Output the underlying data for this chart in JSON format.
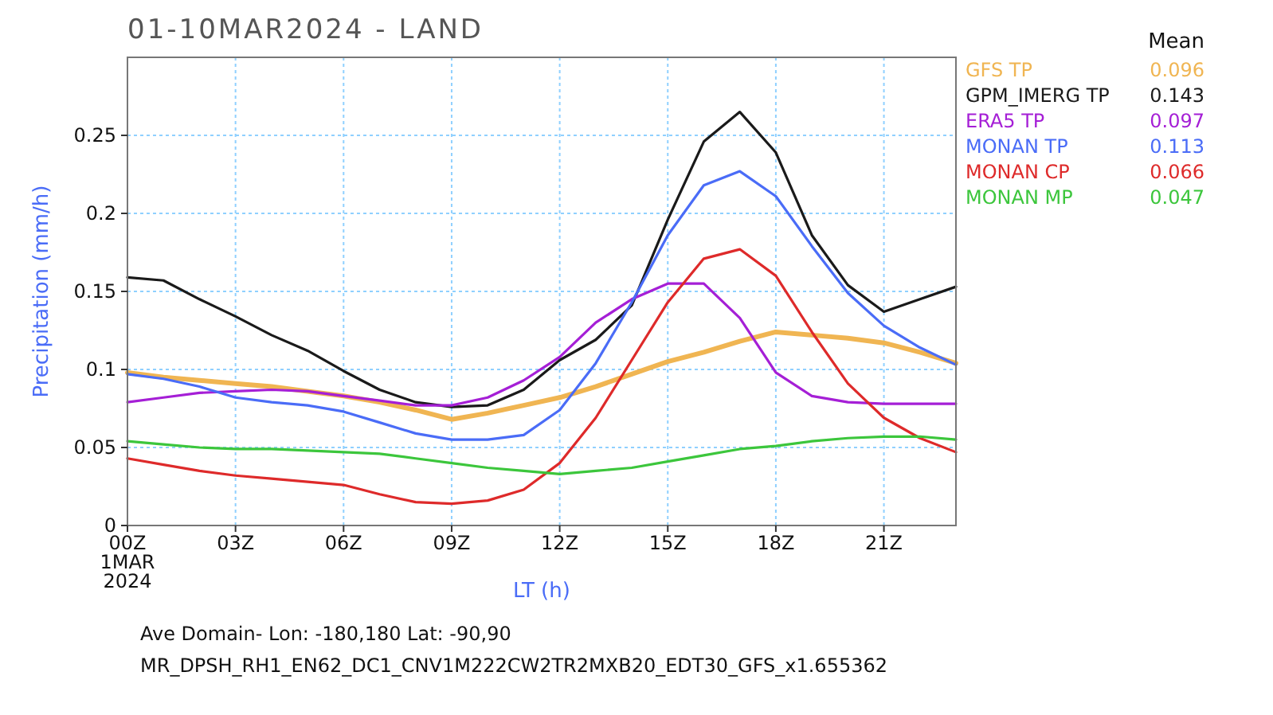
{
  "chart_data": {
    "type": "line",
    "title": "01-10MAR2024 - LAND",
    "xlabel": "LT (h)",
    "ylabel": "Precipitation (mm/h)",
    "legend_title": "Mean",
    "x": [
      0,
      1,
      2,
      3,
      4,
      5,
      6,
      7,
      8,
      9,
      10,
      11,
      12,
      13,
      14,
      15,
      16,
      17,
      18,
      19,
      20,
      21,
      22,
      23
    ],
    "xlim": [
      0,
      23
    ],
    "xticks": [
      {
        "value": 0,
        "label": "00Z\n1MAR\n2024"
      },
      {
        "value": 3,
        "label": "03Z"
      },
      {
        "value": 6,
        "label": "06Z"
      },
      {
        "value": 9,
        "label": "09Z"
      },
      {
        "value": 12,
        "label": "12Z"
      },
      {
        "value": 15,
        "label": "15Z"
      },
      {
        "value": 18,
        "label": "18Z"
      },
      {
        "value": 21,
        "label": "21Z"
      }
    ],
    "ylim": [
      0,
      0.3
    ],
    "yticks": [
      0,
      0.05,
      0.1,
      0.15,
      0.2,
      0.25
    ],
    "grid": true,
    "legend": "right",
    "marker": "none",
    "line_style": "solid",
    "series": [
      {
        "name": "GFS TP",
        "color": "#f0b552",
        "values": [
          0.098,
          0.095,
          0.093,
          0.091,
          0.089,
          0.086,
          0.083,
          0.079,
          0.074,
          0.068,
          0.072,
          0.077,
          0.082,
          0.089,
          0.097,
          0.105,
          0.111,
          0.118,
          0.124,
          0.122,
          0.12,
          0.117,
          0.111,
          0.104
        ]
      },
      {
        "name": "GPM_IMERG TP",
        "color": "#1a1a1a",
        "values": [
          0.159,
          0.157,
          0.145,
          0.134,
          0.122,
          0.112,
          0.099,
          0.087,
          0.079,
          0.076,
          0.077,
          0.087,
          0.106,
          0.119,
          0.141,
          0.196,
          0.246,
          0.265,
          0.239,
          0.186,
          0.154,
          0.137,
          0.145,
          0.153
        ]
      },
      {
        "name": "ERA5 TP",
        "color": "#a51fd6",
        "values": [
          0.079,
          0.082,
          0.085,
          0.086,
          0.087,
          0.086,
          0.083,
          0.08,
          0.077,
          0.077,
          0.082,
          0.093,
          0.108,
          0.13,
          0.145,
          0.155,
          0.155,
          0.133,
          0.098,
          0.083,
          0.079,
          0.078,
          0.078,
          0.078
        ]
      },
      {
        "name": "MONAN TP",
        "color": "#4a6cf7",
        "values": [
          0.097,
          0.094,
          0.089,
          0.082,
          0.079,
          0.077,
          0.073,
          0.066,
          0.059,
          0.055,
          0.055,
          0.058,
          0.074,
          0.104,
          0.143,
          0.186,
          0.218,
          0.227,
          0.211,
          0.179,
          0.149,
          0.128,
          0.114,
          0.103
        ]
      },
      {
        "name": "MONAN CP",
        "color": "#de2a2a",
        "values": [
          0.043,
          0.039,
          0.035,
          0.032,
          0.03,
          0.028,
          0.026,
          0.02,
          0.015,
          0.014,
          0.016,
          0.023,
          0.04,
          0.069,
          0.106,
          0.143,
          0.171,
          0.177,
          0.16,
          0.124,
          0.091,
          0.069,
          0.056,
          0.047
        ]
      },
      {
        "name": "MONAN MP",
        "color": "#3cc63c",
        "values": [
          0.054,
          0.052,
          0.05,
          0.049,
          0.049,
          0.048,
          0.047,
          0.046,
          0.043,
          0.04,
          0.037,
          0.035,
          0.033,
          0.035,
          0.037,
          0.041,
          0.045,
          0.049,
          0.051,
          0.054,
          0.056,
          0.057,
          0.057,
          0.055
        ]
      }
    ],
    "annotations": [
      "0.096",
      "0.143",
      "0.097",
      "0.113",
      "0.066",
      "0.047",
      "Ave Domain- Lon: -180,180 Lat: -90,90",
      "MR_DPSH_RH1_EN62_DC1_CNV1M222CW2TR2MXB20_EDT30_GFS_x1.655362"
    ]
  }
}
